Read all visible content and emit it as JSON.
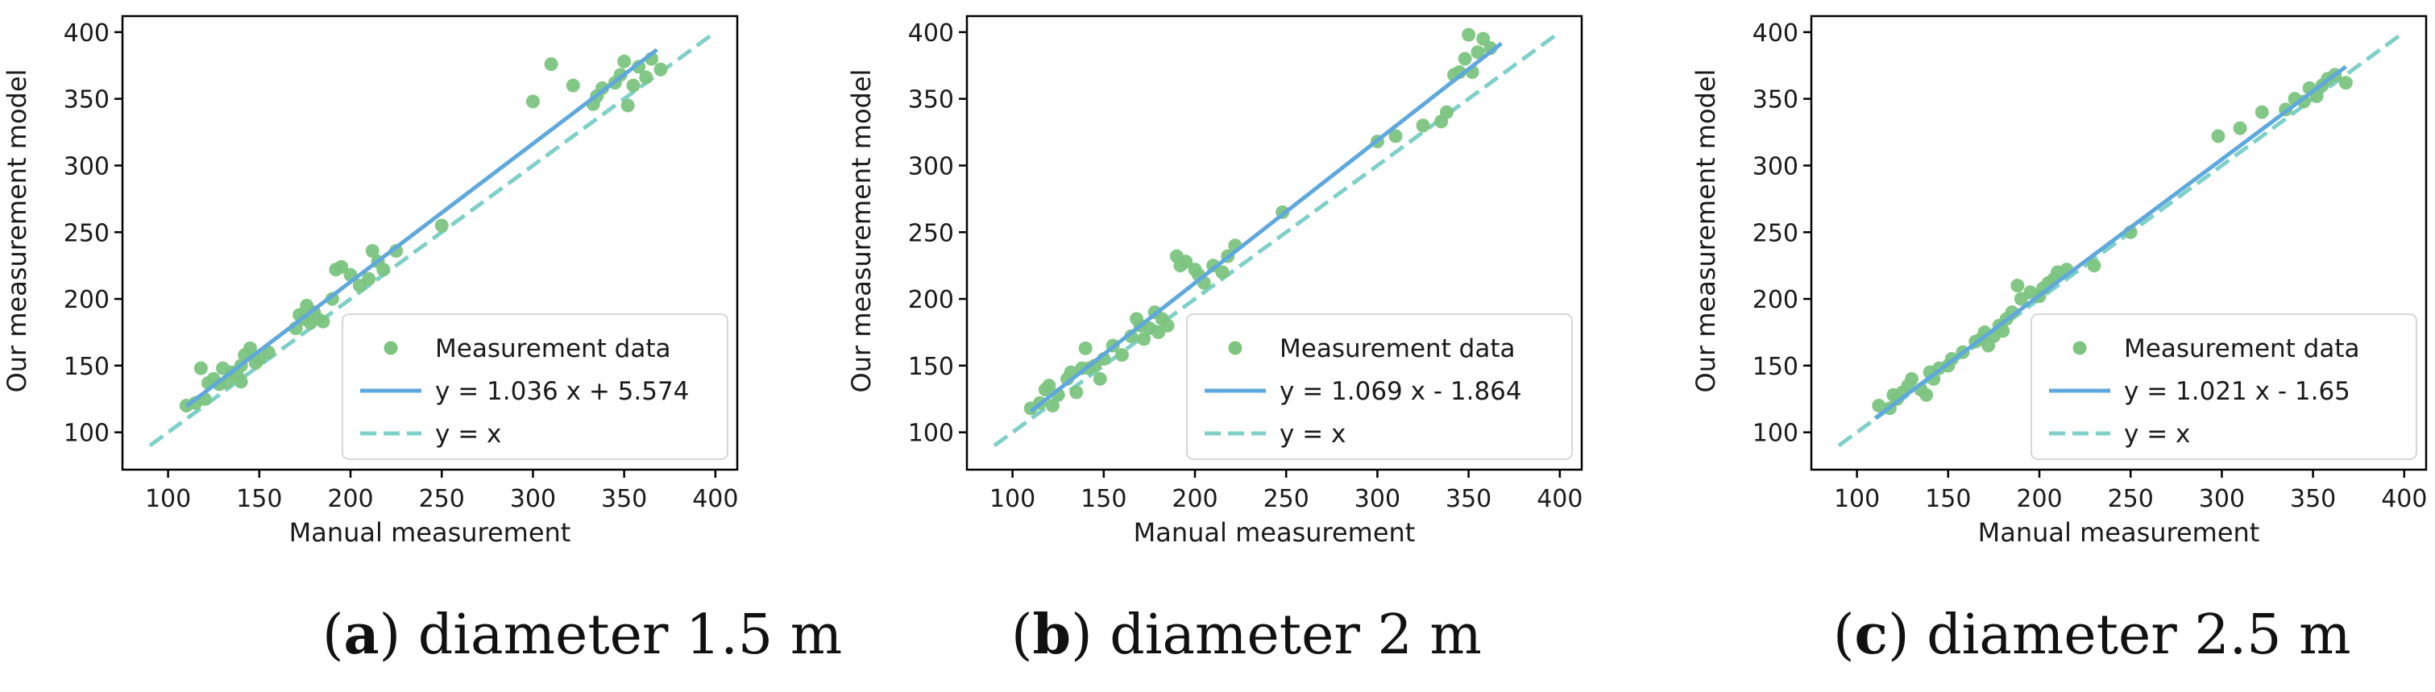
{
  "colors": {
    "scatter": "#7cc47f",
    "fit": "#5fa8dd",
    "identity": "#7fd0c8",
    "axis": "#000000"
  },
  "chart_data": [
    {
      "type": "scatter",
      "xlabel": "Manual measurement",
      "ylabel": "Our measurement model",
      "xlim": [
        75,
        412
      ],
      "ylim": [
        72,
        412
      ],
      "xticks": [
        100,
        150,
        200,
        250,
        300,
        350,
        400
      ],
      "yticks": [
        100,
        150,
        200,
        250,
        300,
        350,
        400
      ],
      "caption": {
        "letter": "a",
        "text": "diameter 1.5 m"
      },
      "legend": {
        "position": "lower-right",
        "entries": [
          "Measurement data",
          "y = 1.036 x + 5.574",
          "y = x"
        ]
      },
      "fit": {
        "slope": 1.036,
        "intercept": 5.574,
        "x_range": [
          110,
          368
        ]
      },
      "identity_range": [
        90,
        398
      ],
      "points": [
        [
          110,
          120
        ],
        [
          115,
          122
        ],
        [
          118,
          148
        ],
        [
          120,
          125
        ],
        [
          122,
          137
        ],
        [
          125,
          140
        ],
        [
          128,
          136
        ],
        [
          130,
          148
        ],
        [
          132,
          138
        ],
        [
          135,
          145
        ],
        [
          138,
          142
        ],
        [
          140,
          150
        ],
        [
          140,
          138
        ],
        [
          142,
          158
        ],
        [
          145,
          163
        ],
        [
          148,
          152
        ],
        [
          150,
          155
        ],
        [
          155,
          160
        ],
        [
          170,
          178
        ],
        [
          172,
          188
        ],
        [
          174,
          185
        ],
        [
          176,
          195
        ],
        [
          178,
          182
        ],
        [
          180,
          190
        ],
        [
          182,
          185
        ],
        [
          185,
          183
        ],
        [
          190,
          200
        ],
        [
          192,
          222
        ],
        [
          195,
          224
        ],
        [
          200,
          218
        ],
        [
          205,
          210
        ],
        [
          210,
          215
        ],
        [
          212,
          236
        ],
        [
          215,
          228
        ],
        [
          218,
          222
        ],
        [
          225,
          236
        ],
        [
          250,
          255
        ],
        [
          300,
          348
        ],
        [
          310,
          376
        ],
        [
          322,
          360
        ],
        [
          333,
          346
        ],
        [
          335,
          352
        ],
        [
          338,
          358
        ],
        [
          345,
          362
        ],
        [
          348,
          368
        ],
        [
          350,
          378
        ],
        [
          352,
          345
        ],
        [
          355,
          360
        ],
        [
          358,
          374
        ],
        [
          362,
          366
        ],
        [
          365,
          380
        ],
        [
          370,
          372
        ]
      ]
    },
    {
      "type": "scatter",
      "xlabel": "Manual measurement",
      "ylabel": "Our measurement model",
      "xlim": [
        75,
        412
      ],
      "ylim": [
        72,
        412
      ],
      "xticks": [
        100,
        150,
        200,
        250,
        300,
        350,
        400
      ],
      "yticks": [
        100,
        150,
        200,
        250,
        300,
        350,
        400
      ],
      "caption": {
        "letter": "b",
        "text": "diameter 2 m"
      },
      "legend": {
        "position": "lower-right",
        "entries": [
          "Measurement data",
          "y = 1.069 x - 1.864",
          "y = x"
        ]
      },
      "fit": {
        "slope": 1.069,
        "intercept": -1.864,
        "x_range": [
          110,
          368
        ]
      },
      "identity_range": [
        90,
        398
      ],
      "points": [
        [
          110,
          118
        ],
        [
          115,
          122
        ],
        [
          118,
          132
        ],
        [
          120,
          135
        ],
        [
          122,
          120
        ],
        [
          125,
          128
        ],
        [
          130,
          140
        ],
        [
          132,
          145
        ],
        [
          135,
          130
        ],
        [
          138,
          148
        ],
        [
          140,
          163
        ],
        [
          142,
          148
        ],
        [
          145,
          150
        ],
        [
          148,
          140
        ],
        [
          150,
          155
        ],
        [
          155,
          165
        ],
        [
          160,
          158
        ],
        [
          165,
          172
        ],
        [
          168,
          185
        ],
        [
          170,
          180
        ],
        [
          172,
          170
        ],
        [
          175,
          178
        ],
        [
          178,
          190
        ],
        [
          180,
          175
        ],
        [
          182,
          185
        ],
        [
          185,
          180
        ],
        [
          190,
          232
        ],
        [
          192,
          225
        ],
        [
          195,
          228
        ],
        [
          200,
          222
        ],
        [
          202,
          218
        ],
        [
          205,
          212
        ],
        [
          210,
          225
        ],
        [
          215,
          220
        ],
        [
          218,
          232
        ],
        [
          222,
          240
        ],
        [
          248,
          265
        ],
        [
          300,
          318
        ],
        [
          310,
          322
        ],
        [
          325,
          330
        ],
        [
          335,
          333
        ],
        [
          338,
          340
        ],
        [
          342,
          368
        ],
        [
          345,
          370
        ],
        [
          348,
          380
        ],
        [
          350,
          398
        ],
        [
          352,
          370
        ],
        [
          355,
          385
        ],
        [
          358,
          395
        ],
        [
          362,
          388
        ]
      ]
    },
    {
      "type": "scatter",
      "xlabel": "Manual measurement",
      "ylabel": "Our measurement model",
      "xlim": [
        75,
        412
      ],
      "ylim": [
        72,
        412
      ],
      "xticks": [
        100,
        150,
        200,
        250,
        300,
        350,
        400
      ],
      "yticks": [
        100,
        150,
        200,
        250,
        300,
        350,
        400
      ],
      "caption": {
        "letter": "c",
        "text": "diameter 2.5 m"
      },
      "legend": {
        "position": "lower-right",
        "entries": [
          "Measurement data",
          "y = 1.021 x - 1.65",
          "y = x"
        ]
      },
      "fit": {
        "slope": 1.021,
        "intercept": -1.65,
        "x_range": [
          110,
          368
        ]
      },
      "identity_range": [
        90,
        398
      ],
      "points": [
        [
          112,
          120
        ],
        [
          118,
          118
        ],
        [
          120,
          128
        ],
        [
          122,
          125
        ],
        [
          125,
          130
        ],
        [
          128,
          135
        ],
        [
          130,
          140
        ],
        [
          135,
          132
        ],
        [
          138,
          128
        ],
        [
          140,
          145
        ],
        [
          142,
          140
        ],
        [
          145,
          148
        ],
        [
          150,
          150
        ],
        [
          152,
          155
        ],
        [
          158,
          160
        ],
        [
          165,
          168
        ],
        [
          168,
          170
        ],
        [
          170,
          175
        ],
        [
          172,
          165
        ],
        [
          175,
          172
        ],
        [
          178,
          180
        ],
        [
          180,
          176
        ],
        [
          182,
          185
        ],
        [
          185,
          190
        ],
        [
          188,
          210
        ],
        [
          190,
          200
        ],
        [
          195,
          205
        ],
        [
          200,
          202
        ],
        [
          202,
          208
        ],
        [
          205,
          212
        ],
        [
          208,
          215
        ],
        [
          210,
          220
        ],
        [
          215,
          222
        ],
        [
          230,
          225
        ],
        [
          250,
          250
        ],
        [
          298,
          322
        ],
        [
          310,
          328
        ],
        [
          322,
          340
        ],
        [
          335,
          342
        ],
        [
          340,
          350
        ],
        [
          345,
          348
        ],
        [
          348,
          358
        ],
        [
          352,
          352
        ],
        [
          355,
          360
        ],
        [
          358,
          365
        ],
        [
          362,
          368
        ],
        [
          368,
          362
        ]
      ]
    }
  ]
}
